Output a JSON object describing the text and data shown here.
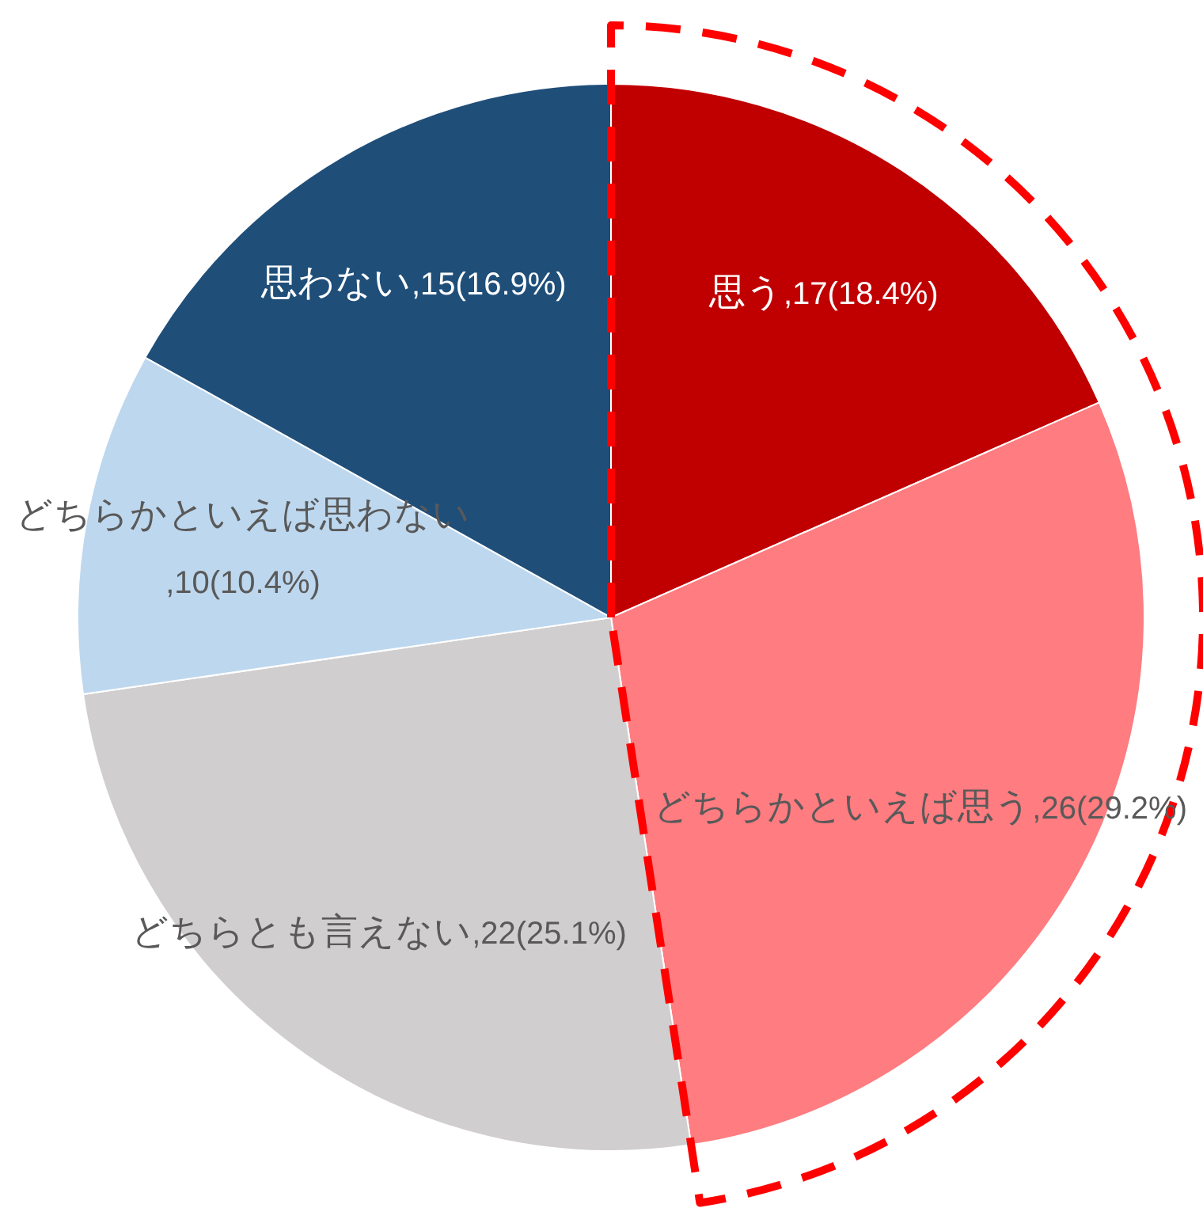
{
  "chart_data": {
    "type": "pie",
    "categories": [
      "思う",
      "どちらかといえば思う",
      "どちらとも言えない",
      "どちらかといえば思わない",
      "思わない"
    ],
    "values": [
      18.4,
      29.2,
      25.1,
      10.4,
      16.9
    ],
    "colors": [
      "#c00000",
      "#ff7c80",
      "#d0cece",
      "#bdd7ee",
      "#1f4e79"
    ],
    "value_labels": [
      ",17(18.4%)",
      ",26(29.2%)",
      ",22(25.1%)",
      ",10(10.4%)",
      ",15(16.9%)"
    ]
  }
}
